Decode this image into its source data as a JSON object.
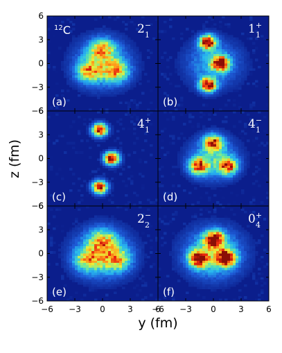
{
  "chart_data": {
    "type": "heatmap",
    "nucleus": {
      "mass_number": "12",
      "element": "C"
    },
    "xlabel": "y (fm)",
    "ylabel": "z (fm)",
    "xlim": [
      -6,
      6
    ],
    "ylim": [
      -6,
      6
    ],
    "x_ticks": [
      -6,
      -3,
      0,
      3,
      6
    ],
    "y_ticks": [
      6,
      3,
      0,
      -3,
      -6
    ],
    "x_tick_labels": [
      "−6",
      "−3",
      "0",
      "3",
      "6"
    ],
    "y_tick_labels": [
      "6",
      "3",
      "0",
      "−3",
      "−6"
    ],
    "colormap": [
      "#0b1e8c",
      "#1e5cd8",
      "#27b6f0",
      "#5fe6a8",
      "#e8ee3a",
      "#ff9a1a",
      "#e8250e",
      "#8a0e06"
    ],
    "background_color": "#0b1e8c",
    "grid": false,
    "panels": [
      {
        "label": "(a)",
        "state": "2",
        "sub": "1",
        "parity": "−",
        "blobs": [
          {
            "y": -1.5,
            "z": -1.0,
            "sigma": 0.9,
            "amp": 0.5
          },
          {
            "y": 1.5,
            "z": -1.0,
            "sigma": 0.9,
            "amp": 0.5
          },
          {
            "y": 0.0,
            "z": 1.8,
            "sigma": 0.9,
            "amp": 0.5
          },
          {
            "y": 0.0,
            "z": 0.0,
            "sigma": 1.9,
            "amp": 0.4
          }
        ]
      },
      {
        "label": "(b)",
        "state": "1",
        "sub": "1",
        "parity": "+",
        "blobs": [
          {
            "y": -0.6,
            "z": 2.7,
            "sigma": 0.6,
            "amp": 1.0
          },
          {
            "y": 0.8,
            "z": 0.0,
            "sigma": 0.6,
            "amp": 1.0
          },
          {
            "y": -0.6,
            "z": -2.7,
            "sigma": 0.6,
            "amp": 1.0
          },
          {
            "y": 0.0,
            "z": 0.0,
            "sigma": 1.9,
            "amp": 0.3
          }
        ]
      },
      {
        "label": "(c)",
        "state": "4",
        "sub": "1",
        "parity": "+",
        "blobs": [
          {
            "y": -0.3,
            "z": 3.6,
            "sigma": 0.55,
            "amp": 1.0
          },
          {
            "y": 1.0,
            "z": 0.0,
            "sigma": 0.55,
            "amp": 1.0
          },
          {
            "y": -0.3,
            "z": -3.6,
            "sigma": 0.55,
            "amp": 1.0
          }
        ]
      },
      {
        "label": "(d)",
        "state": "4",
        "sub": "1",
        "parity": "−",
        "blobs": [
          {
            "y": -1.6,
            "z": -1.0,
            "sigma": 0.7,
            "amp": 0.75
          },
          {
            "y": 1.6,
            "z": -1.0,
            "sigma": 0.7,
            "amp": 0.75
          },
          {
            "y": 0.0,
            "z": 2.0,
            "sigma": 0.7,
            "amp": 0.75
          },
          {
            "y": 0.0,
            "z": 0.0,
            "sigma": 1.7,
            "amp": 0.35
          }
        ]
      },
      {
        "label": "(e)",
        "state": "2",
        "sub": "2",
        "parity": "−",
        "blobs": [
          {
            "y": -1.6,
            "z": -0.8,
            "sigma": 1.0,
            "amp": 0.45
          },
          {
            "y": 1.6,
            "z": -0.8,
            "sigma": 1.0,
            "amp": 0.45
          },
          {
            "y": 0.0,
            "z": 1.6,
            "sigma": 1.0,
            "amp": 0.45
          },
          {
            "y": 0.0,
            "z": 0.0,
            "sigma": 2.0,
            "amp": 0.4
          }
        ]
      },
      {
        "label": "(f)",
        "state": "0",
        "sub": "4",
        "parity": "+",
        "blobs": [
          {
            "y": -1.6,
            "z": -0.7,
            "sigma": 0.7,
            "amp": 0.9
          },
          {
            "y": 1.4,
            "z": -0.6,
            "sigma": 0.7,
            "amp": 0.9
          },
          {
            "y": 0.1,
            "z": 1.8,
            "sigma": 0.7,
            "amp": 0.9
          },
          {
            "y": 0.0,
            "z": 0.0,
            "sigma": 2.0,
            "amp": 0.45
          }
        ]
      }
    ]
  }
}
